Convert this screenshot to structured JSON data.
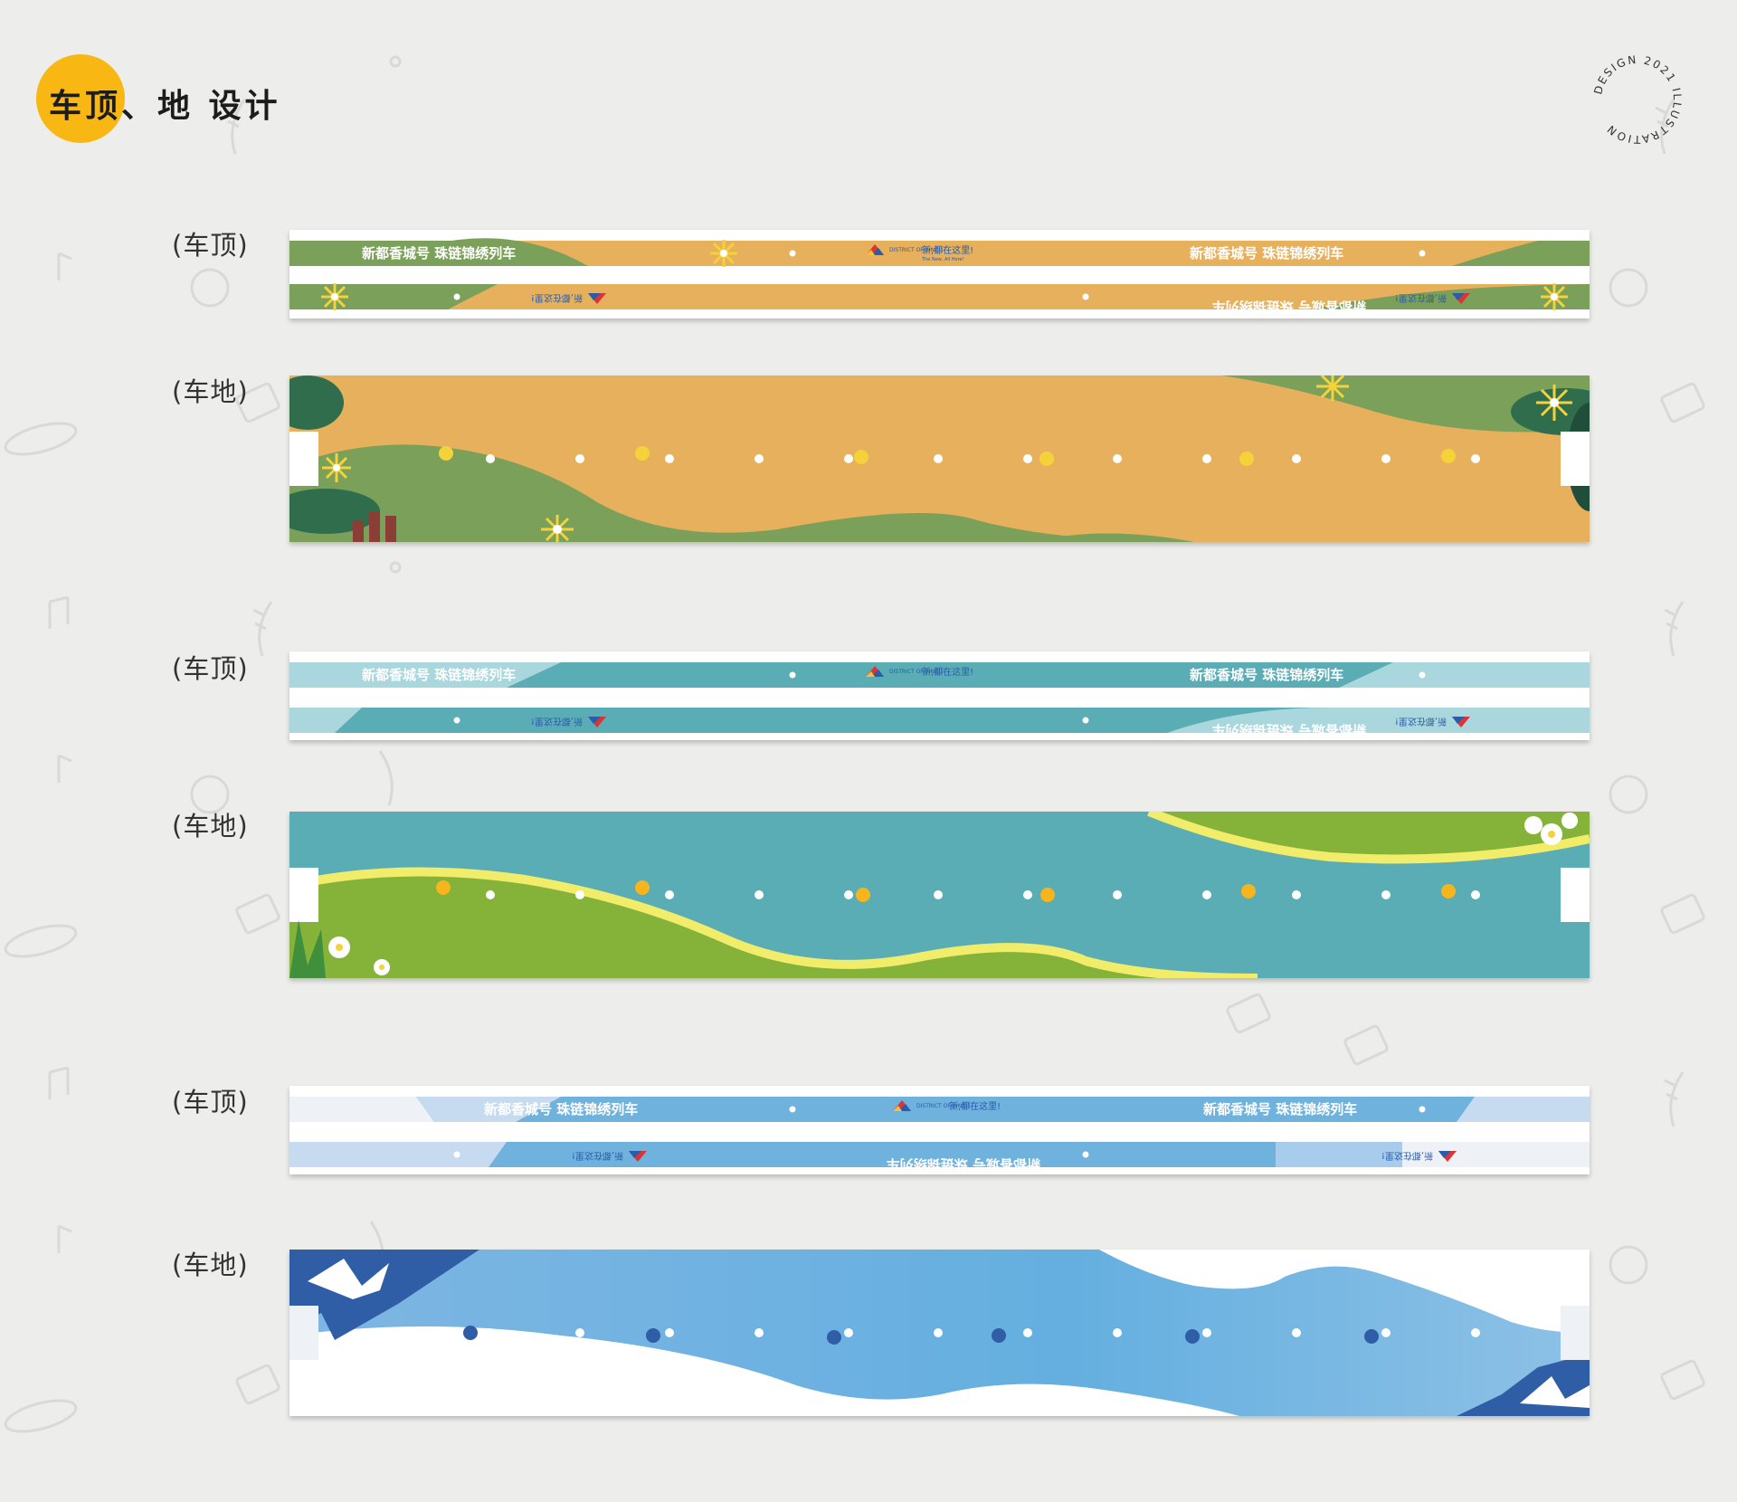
{
  "header": {
    "title": "车顶、地 设计"
  },
  "stamp": {
    "text": "DESIGN 2021 ILLUSTRATION"
  },
  "banner_texts": {
    "slogan": "新都香城号  珠链锦绣列车",
    "brand_cn": "新,都在这里!",
    "brand_en": "The New, All Here!",
    "district": "DISTRICT OF XINDU",
    "logo_cn": "新都"
  },
  "sections": [
    {
      "roof_label": "(车顶)",
      "floor_label": "(车地)",
      "theme": "green-orange"
    },
    {
      "roof_label": "(车顶)",
      "floor_label": "(车地)",
      "theme": "teal-green"
    },
    {
      "roof_label": "(车顶)",
      "floor_label": "(车地)",
      "theme": "blue-white"
    }
  ],
  "colors": {
    "accent": "#f8b712",
    "green": "#7ba05a",
    "orange": "#e6b05d",
    "teal": "#5aadb5",
    "lime": "#85b33a",
    "blue": "#6fb2de",
    "navy": "#2f5ea6"
  }
}
